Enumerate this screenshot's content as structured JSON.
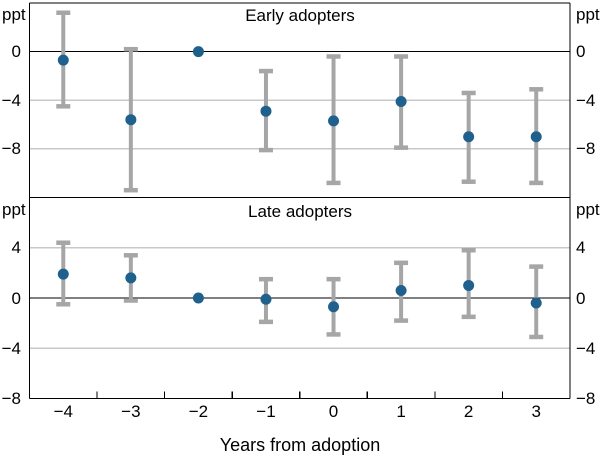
{
  "figure": {
    "xlabel": "Years from adoption",
    "unit_label": "ppt",
    "colors": {
      "dot": "#1f618c",
      "error_bar": "#a6a6a6",
      "gridline": "#c8c8c8",
      "axis": "#000000"
    }
  },
  "chart_data": [
    {
      "type": "scatter",
      "title": "Early adopters",
      "unit": "ppt",
      "x": [
        "-4",
        "-3",
        "-2",
        "-1",
        "0",
        "1",
        "2",
        "3"
      ],
      "series": [
        {
          "name": "estimate",
          "values": [
            -0.7,
            -5.6,
            0,
            -4.9,
            -5.7,
            -4.1,
            -7.0,
            -7.0
          ]
        },
        {
          "name": "ci_upper",
          "values": [
            3.2,
            0.2,
            null,
            -1.6,
            -0.4,
            -0.4,
            -3.4,
            -3.1
          ]
        },
        {
          "name": "ci_lower",
          "values": [
            -4.5,
            -11.4,
            null,
            -8.1,
            -10.8,
            -7.9,
            -10.7,
            -10.8
          ]
        }
      ],
      "ylim": [
        -12,
        4
      ],
      "yticks": [
        0,
        -4,
        -8
      ],
      "grid": true,
      "legend": "none"
    },
    {
      "type": "scatter",
      "title": "Late adopters",
      "unit": "ppt",
      "xlabel": "Years from adoption",
      "x": [
        "-4",
        "-3",
        "-2",
        "-1",
        "0",
        "1",
        "2",
        "3"
      ],
      "series": [
        {
          "name": "estimate",
          "values": [
            1.9,
            1.6,
            0,
            -0.1,
            -0.7,
            0.6,
            1.0,
            -0.4
          ]
        },
        {
          "name": "ci_upper",
          "values": [
            4.4,
            3.4,
            null,
            1.5,
            1.5,
            2.8,
            3.8,
            2.5
          ]
        },
        {
          "name": "ci_lower",
          "values": [
            -0.5,
            -0.2,
            null,
            -1.9,
            -2.9,
            -1.8,
            -1.5,
            -3.1
          ]
        }
      ],
      "ylim": [
        -8,
        8
      ],
      "yticks": [
        4,
        0,
        -4,
        -8
      ],
      "grid": true,
      "legend": "none"
    }
  ]
}
